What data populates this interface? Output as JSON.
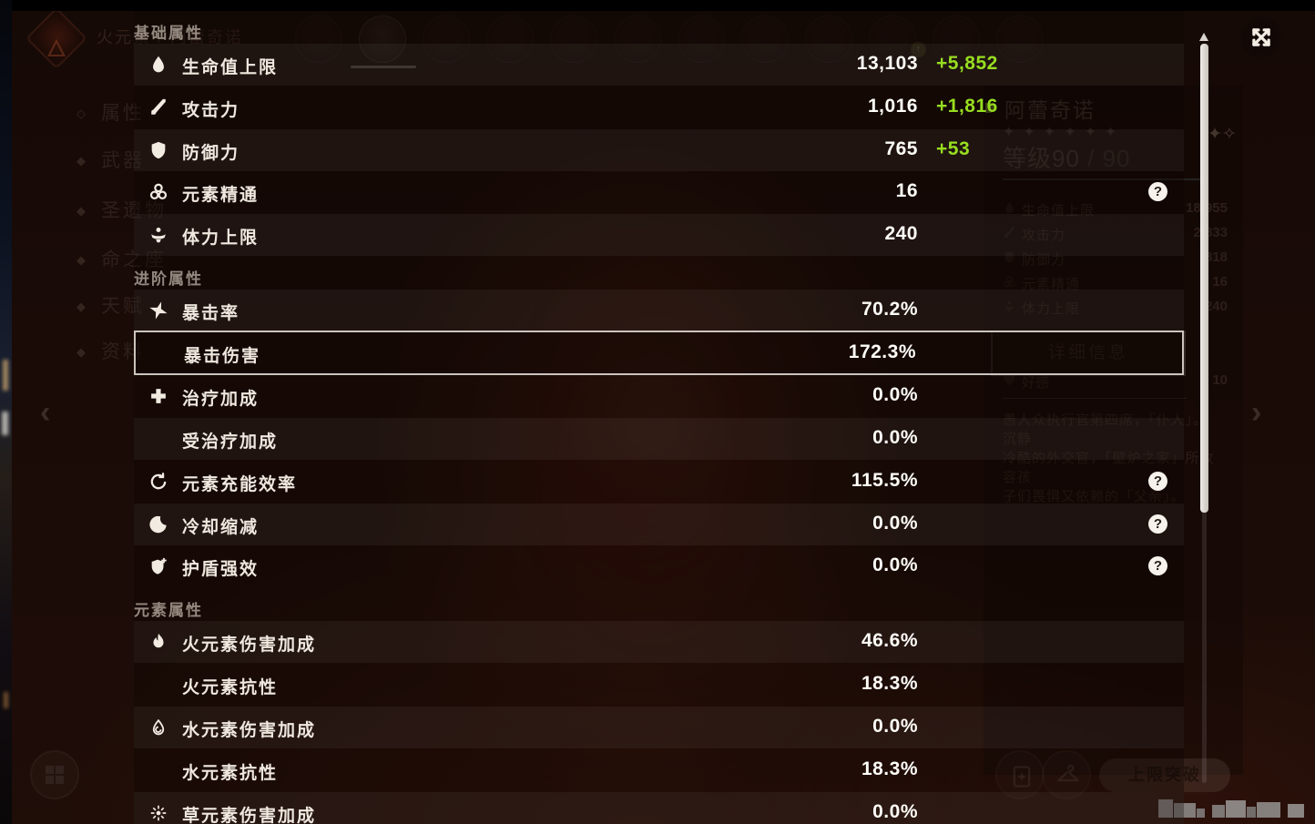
{
  "glyphs": {
    "help": "?",
    "flame": "🜂",
    "chevron_left": "‹",
    "chevron_right": "›",
    "sparkle": "✦✧",
    "badge_up": "↑"
  },
  "colors": {
    "bonus_green": "#97dd20",
    "value_white": "#fffdf8"
  },
  "panel": {
    "sections": [
      {
        "title": "基础属性",
        "rows": [
          {
            "icon": "hp-icon",
            "label": "生命值上限",
            "value": "13,103",
            "bonus": "+5,852",
            "light": true
          },
          {
            "icon": "atk-icon",
            "label": "攻击力",
            "value": "1,016",
            "bonus": "+1,816",
            "light": false
          },
          {
            "icon": "def-icon",
            "label": "防御力",
            "value": "765",
            "bonus": "+53",
            "light": true
          },
          {
            "icon": "em-icon",
            "label": "元素精通",
            "value": "16",
            "help": true,
            "light": false
          },
          {
            "icon": "stamina-icon",
            "label": "体力上限",
            "value": "240",
            "light": true
          }
        ]
      },
      {
        "title": "进阶属性",
        "rows": [
          {
            "icon": "crit-rate-icon",
            "label": "暴击率",
            "value": "70.2%",
            "light": true
          },
          {
            "icon": "",
            "label": "暴击伤害",
            "value": "172.3%",
            "selected": true,
            "light": false
          },
          {
            "icon": "healing-icon",
            "label": "治疗加成",
            "value": "0.0%",
            "light": false
          },
          {
            "icon": "",
            "label": "受治疗加成",
            "value": "0.0%",
            "light": true
          },
          {
            "icon": "energy-recharge-icon",
            "label": "元素充能效率",
            "value": "115.5%",
            "help": true,
            "light": false
          },
          {
            "icon": "cooldown-icon",
            "label": "冷却缩减",
            "value": "0.0%",
            "help": true,
            "light": true
          },
          {
            "icon": "shield-strength-icon",
            "label": "护盾强效",
            "value": "0.0%",
            "help": true,
            "light": false
          }
        ]
      },
      {
        "title": "元素属性",
        "rows": [
          {
            "icon": "pyro-icon",
            "label": "火元素伤害加成",
            "value": "46.6%",
            "light": true
          },
          {
            "icon": "",
            "label": "火元素抗性",
            "value": "18.3%",
            "light": false
          },
          {
            "icon": "hydro-icon",
            "label": "水元素伤害加成",
            "value": "0.0%",
            "light": true
          },
          {
            "icon": "",
            "label": "水元素抗性",
            "value": "18.3%",
            "light": false
          },
          {
            "icon": "dendro-icon",
            "label": "草元素伤害加成",
            "value": "0.0%",
            "light": true
          }
        ]
      }
    ]
  },
  "background": {
    "element_label": "火元素 / 阿蕾奇诺",
    "sidebar": [
      {
        "bullet": "◇",
        "label": "属性"
      },
      {
        "bullet": "◆",
        "label": "武器"
      },
      {
        "bullet": "◆",
        "label": "圣遗物"
      },
      {
        "bullet": "◆",
        "label": "命之座"
      },
      {
        "bullet": "◆",
        "label": "天赋"
      },
      {
        "bullet": "◆",
        "label": "资料"
      }
    ],
    "char_name": "阿蕾奇诺",
    "stars": "✦✦✦✦✦✦",
    "level_current": "等级90",
    "level_max": " / 90",
    "mini_stats": [
      {
        "icon": "hp-icon",
        "label": "生命值上限",
        "value": "18,955"
      },
      {
        "icon": "atk-icon",
        "label": "攻击力",
        "value": "2,833"
      },
      {
        "icon": "def-icon",
        "label": "防御力",
        "value": "818"
      },
      {
        "icon": "em-icon",
        "label": "元素精通",
        "value": "16"
      },
      {
        "icon": "stamina-icon",
        "label": "体力上限",
        "value": "240"
      }
    ],
    "detail_button": "详细信息",
    "friendship_label": "好感",
    "friendship_value": "10",
    "description_lines": [
      "愚人众执行官第四席，「仆人」。沉静",
      "冷酷的外交官，「壁炉之家」所收容孩",
      "子们畏惧又依赖的「父亲」。"
    ],
    "limit_break_button": "上限突破"
  }
}
